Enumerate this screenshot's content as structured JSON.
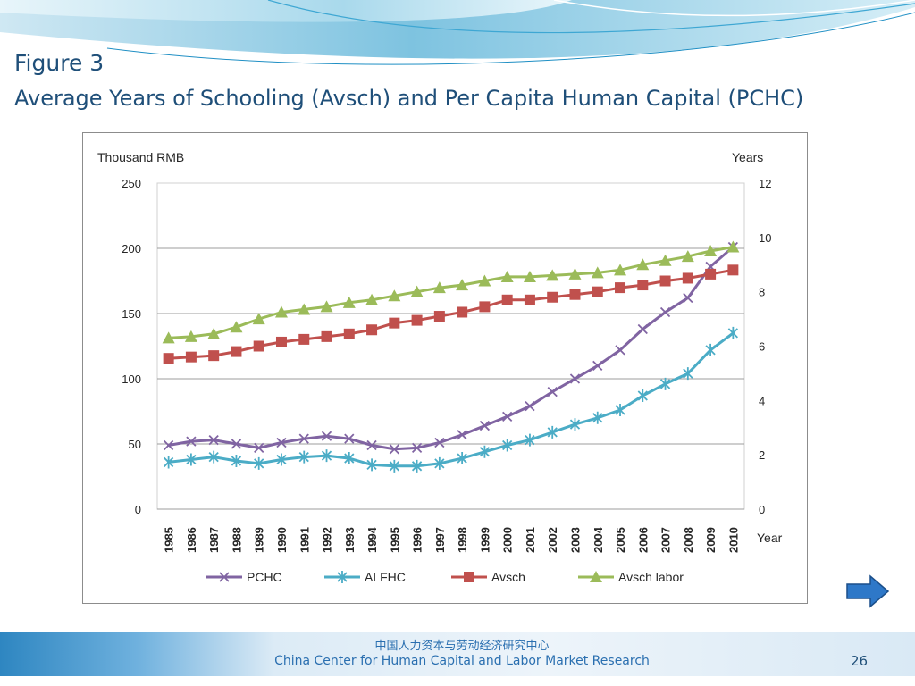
{
  "slide": {
    "title_line1": "Figure 3",
    "title_line2": "Average Years of Schooling (Avsch) and Per Capita Human Capital (PCHC)",
    "footer_cn": "中国人力资本与劳动经济研究中心",
    "footer_en": "China Center for Human Capital and Labor Market Research",
    "page_number": "26",
    "next_icon": "right-arrow-icon"
  },
  "colors": {
    "title": "#1f4f79",
    "footer_text": "#2a6fb0",
    "PCHC": "#8064a2",
    "ALFHC": "#4bacc6",
    "Avsch": "#c0504d",
    "Avsch labor": "#9bbb59"
  },
  "chart_data": {
    "type": "line",
    "ylabel": "Thousand RMB",
    "y2label": "Years",
    "xlabel": "Year",
    "ylim": [
      0,
      250
    ],
    "yticks": [
      0,
      50,
      100,
      150,
      200,
      250
    ],
    "y2lim": [
      0,
      12
    ],
    "y2ticks": [
      0,
      2,
      4,
      6,
      8,
      10,
      12
    ],
    "grid": "horizontal",
    "legend": "bottom",
    "categories": [
      "1985",
      "1986",
      "1987",
      "1988",
      "1989",
      "1990",
      "1991",
      "1992",
      "1993",
      "1994",
      "1995",
      "1996",
      "1997",
      "1998",
      "1999",
      "2000",
      "2001",
      "2002",
      "2003",
      "2004",
      "2005",
      "2006",
      "2007",
      "2008",
      "2009",
      "2010"
    ],
    "series": [
      {
        "name": "PCHC",
        "axis": "left",
        "marker": "x",
        "values": [
          49,
          52,
          53,
          50,
          47,
          51,
          54,
          56,
          54,
          49,
          46,
          47,
          51,
          57,
          64,
          71,
          79,
          90,
          100,
          110,
          122,
          138,
          151,
          162,
          186,
          201
        ]
      },
      {
        "name": "ALFHC",
        "axis": "left",
        "marker": "asterisk",
        "values": [
          36,
          38,
          40,
          37,
          35,
          38,
          40,
          41,
          39,
          34,
          33,
          33,
          35,
          39,
          44,
          49,
          53,
          59,
          65,
          70,
          76,
          87,
          96,
          104,
          122,
          135
        ]
      },
      {
        "name": "Avsch",
        "axis": "right",
        "marker": "square",
        "values": [
          5.55,
          5.6,
          5.65,
          5.8,
          6.0,
          6.15,
          6.25,
          6.35,
          6.45,
          6.6,
          6.85,
          6.95,
          7.1,
          7.25,
          7.45,
          7.7,
          7.7,
          7.8,
          7.9,
          8.0,
          8.15,
          8.25,
          8.4,
          8.5,
          8.65,
          8.8
        ]
      },
      {
        "name": "Avsch labor",
        "axis": "right",
        "marker": "triangle",
        "values": [
          6.3,
          6.35,
          6.45,
          6.7,
          7.0,
          7.25,
          7.35,
          7.45,
          7.6,
          7.7,
          7.85,
          8.0,
          8.15,
          8.25,
          8.4,
          8.55,
          8.55,
          8.6,
          8.65,
          8.7,
          8.8,
          9.0,
          9.15,
          9.3,
          9.5,
          9.65
        ]
      }
    ]
  }
}
